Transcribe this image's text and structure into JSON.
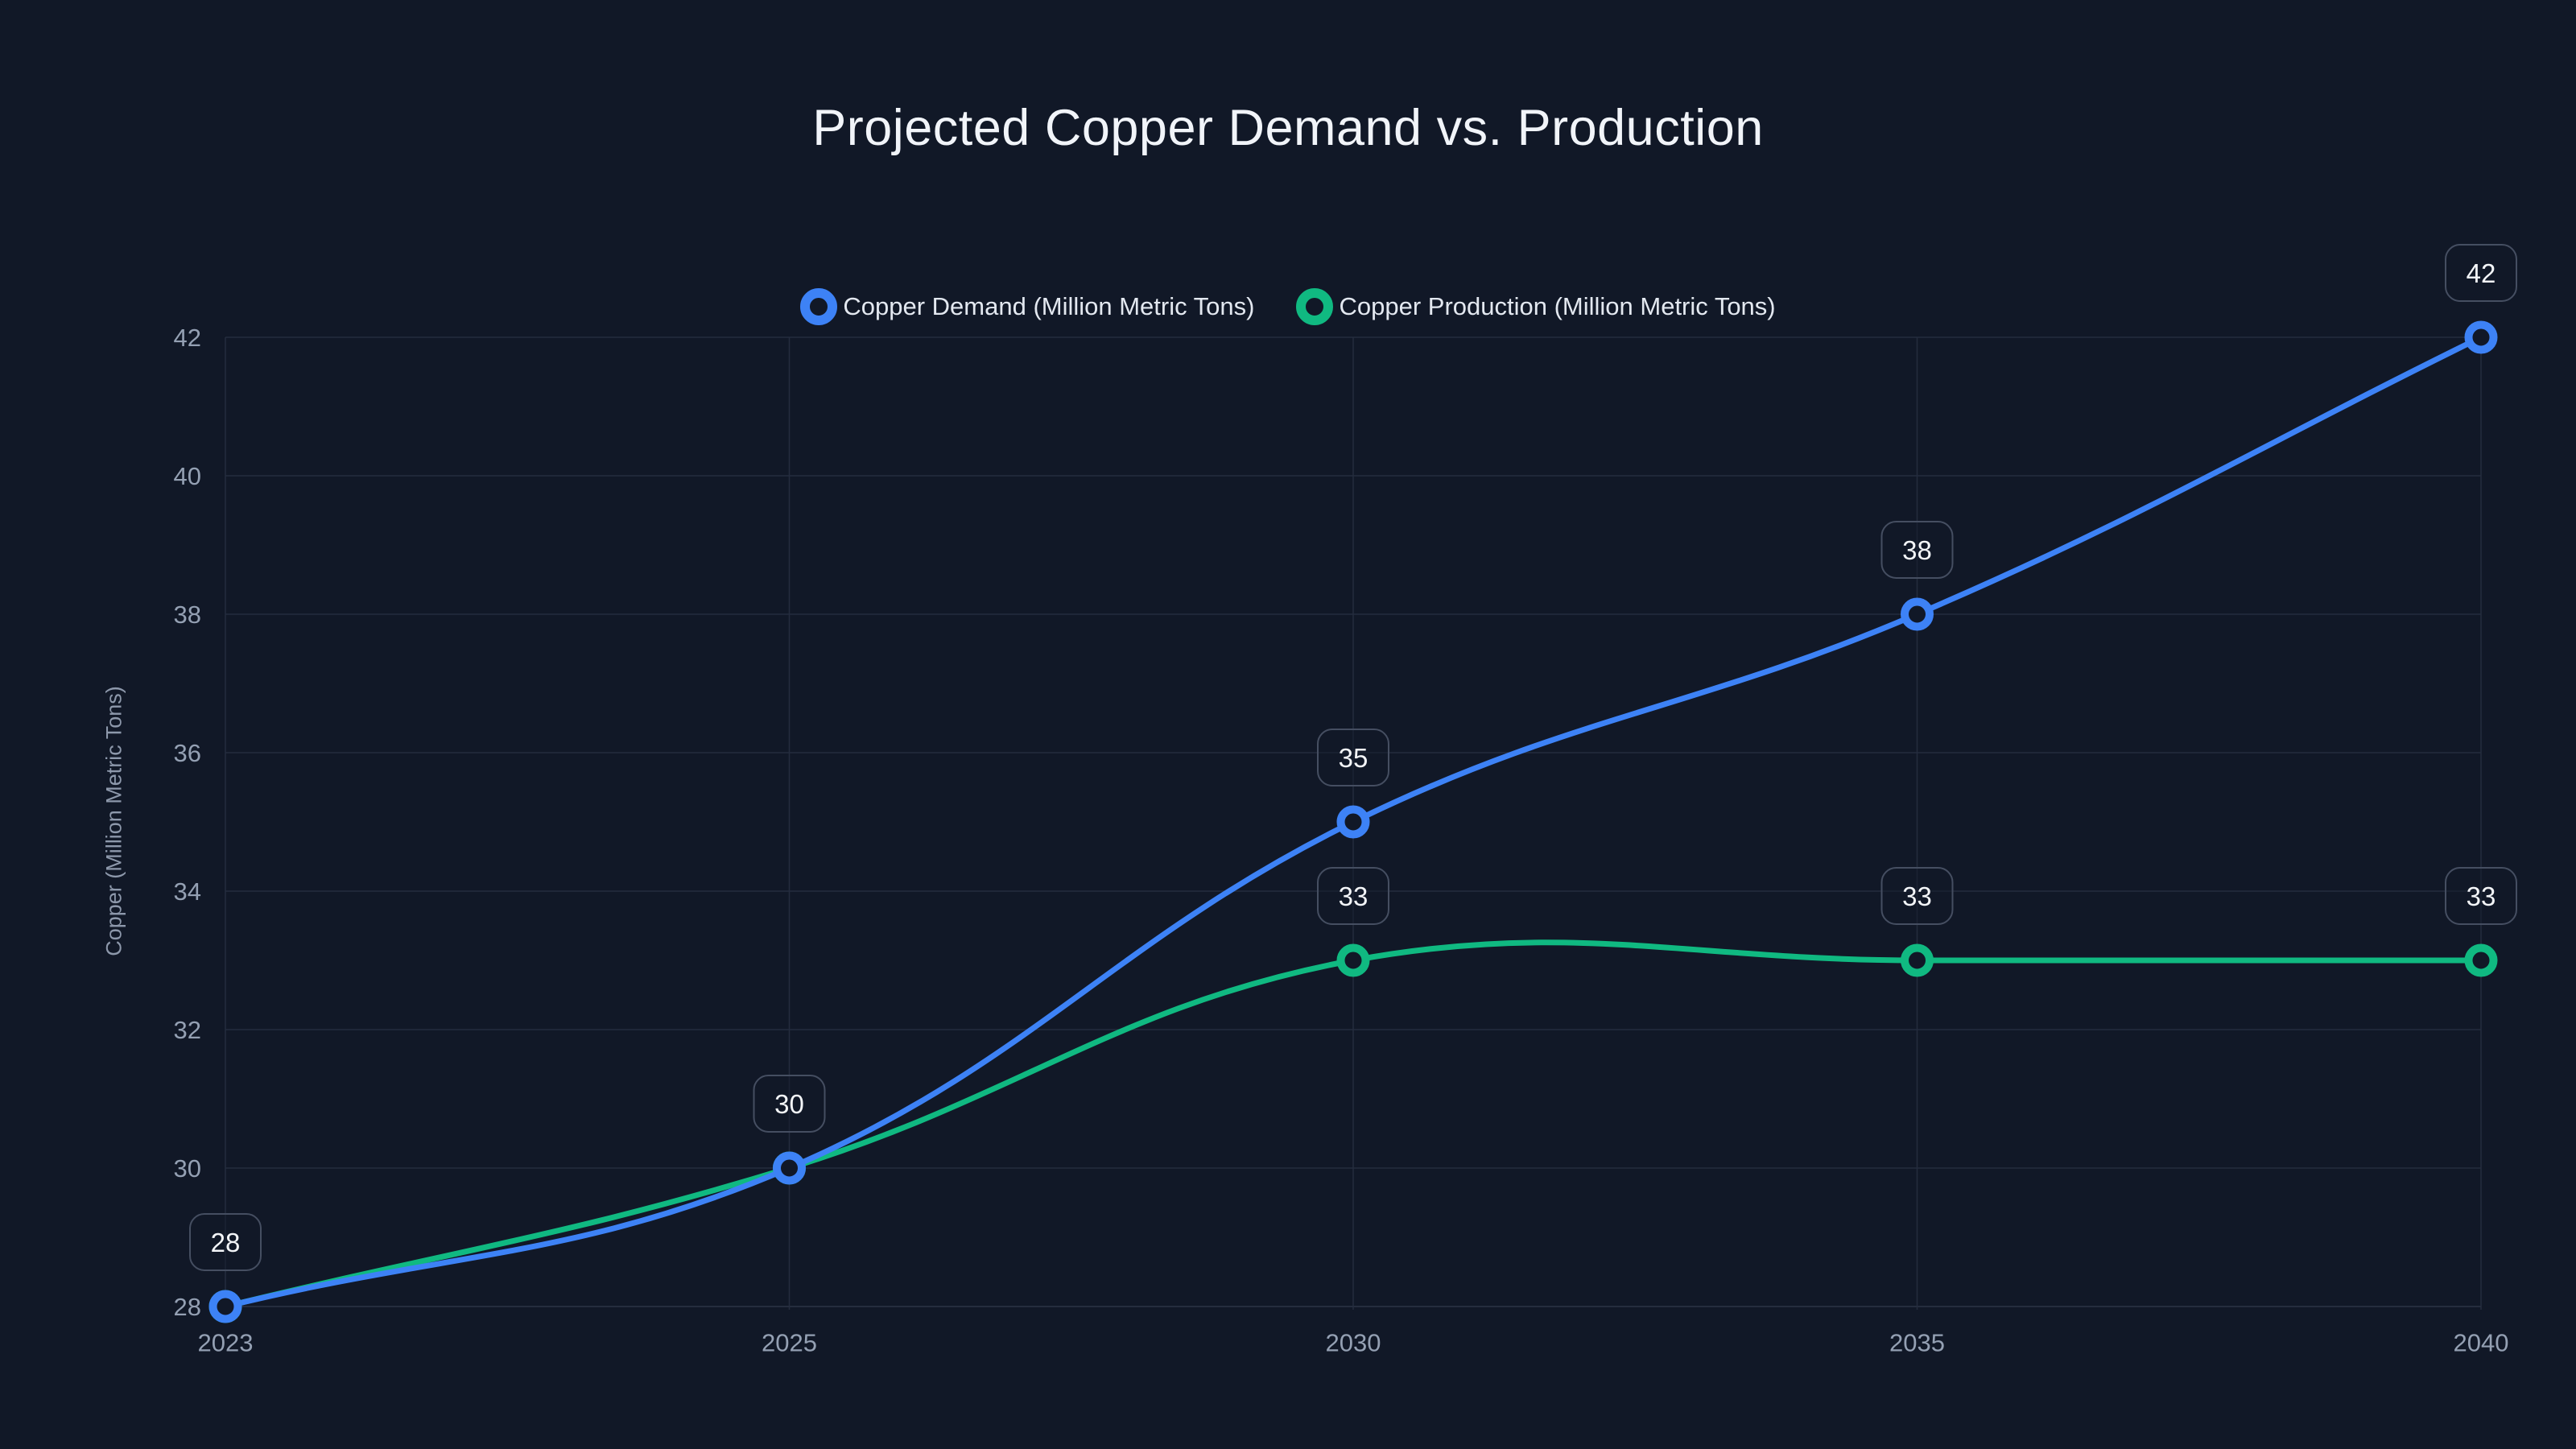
{
  "chart_data": {
    "type": "line",
    "title": "Projected Copper Demand vs. Production",
    "x": [
      "2023",
      "2025",
      "2030",
      "2035",
      "2040"
    ],
    "xlabel": "",
    "ylabel": "Copper (Million Metric Tons)",
    "ylim": [
      28,
      42
    ],
    "yticks": [
      28,
      30,
      32,
      34,
      36,
      38,
      40,
      42
    ],
    "grid": true,
    "smooth": true,
    "legend_position": "top-center",
    "series": [
      {
        "name": "Copper Demand (Million Metric Tons)",
        "color": "#3d82f6",
        "values": [
          28,
          30,
          35,
          38,
          42
        ],
        "point_labels": [
          "28",
          "30",
          "35",
          "38",
          "42"
        ]
      },
      {
        "name": "Copper Production (Million Metric Tons)",
        "color": "#10b981",
        "values": [
          28,
          30,
          33,
          33,
          33
        ],
        "point_labels": [
          null,
          null,
          "33",
          "33",
          "33"
        ]
      }
    ]
  },
  "colors": {
    "background": "#111827",
    "title_text": "#f1f4f9",
    "legend_text": "#e3e8f0",
    "tick_label": "#94a0b3",
    "axis_title": "#8d98ab",
    "grid": "#242c3e",
    "axis_line": "#2c3447",
    "badge_border": "#454e61",
    "badge_fill": "rgba(17,24,39,0.5)",
    "badge_text": "#f3f5f8"
  }
}
